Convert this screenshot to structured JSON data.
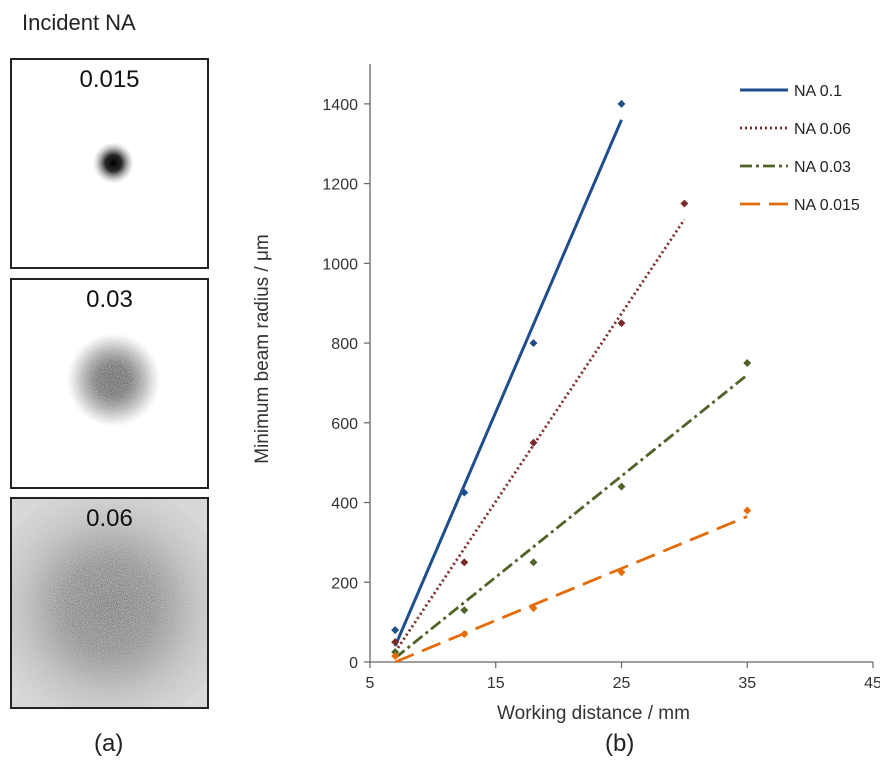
{
  "panel_a": {
    "title": "Incident NA",
    "sub_label": "(a)",
    "panels": [
      {
        "label": "0.015"
      },
      {
        "label": "0.03"
      },
      {
        "label": "0.06"
      }
    ]
  },
  "panel_b": {
    "sub_label": "(b)"
  },
  "chart_data": {
    "type": "scatter",
    "title": "",
    "xlabel": "Working distance  / mm",
    "ylabel": "Minimum beam radius / μm",
    "xlim": [
      5,
      45
    ],
    "ylim": [
      0,
      1500
    ],
    "xticks": [
      5,
      15,
      25,
      35,
      45
    ],
    "yticks": [
      0,
      200,
      400,
      600,
      800,
      1000,
      1200,
      1400
    ],
    "grid": false,
    "legend_position": "top-right",
    "series": [
      {
        "name": "NA 0.1",
        "color": "#1f4e8c",
        "line_style": "solid",
        "points": [
          [
            7,
            80
          ],
          [
            12.5,
            425
          ],
          [
            18,
            800
          ],
          [
            25,
            1400
          ]
        ],
        "trend": [
          [
            7,
            40
          ],
          [
            25,
            1360
          ]
        ]
      },
      {
        "name": "NA 0.06",
        "color": "#7b2a2a",
        "line_style": "dotted",
        "points": [
          [
            7,
            50
          ],
          [
            12.5,
            250
          ],
          [
            18,
            550
          ],
          [
            25,
            850
          ],
          [
            30,
            1150
          ]
        ],
        "trend": [
          [
            7,
            25
          ],
          [
            30,
            1110
          ]
        ]
      },
      {
        "name": "NA 0.03",
        "color": "#4f6228",
        "line_style": "dash-dot",
        "points": [
          [
            7,
            25
          ],
          [
            12.5,
            130
          ],
          [
            18,
            250
          ],
          [
            25,
            440
          ],
          [
            35,
            750
          ]
        ],
        "trend": [
          [
            7,
            10
          ],
          [
            35,
            720
          ]
        ]
      },
      {
        "name": "NA 0.015",
        "color": "#e36c09",
        "line_style": "long-dash",
        "points": [
          [
            7,
            15
          ],
          [
            12.5,
            70
          ],
          [
            18,
            135
          ],
          [
            25,
            225
          ],
          [
            35,
            380
          ]
        ],
        "trend": [
          [
            7,
            0
          ],
          [
            35,
            365
          ]
        ]
      }
    ]
  }
}
